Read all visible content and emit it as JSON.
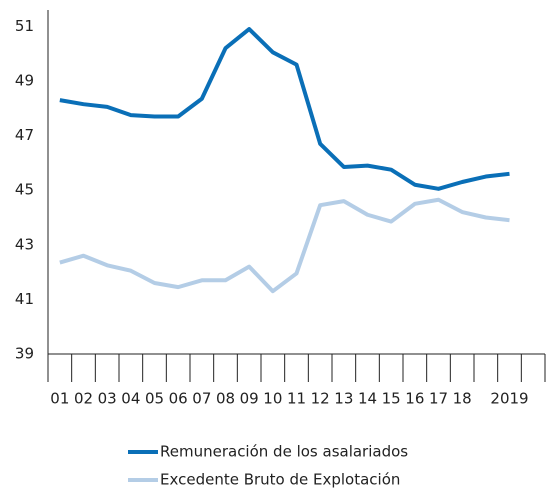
{
  "chart_data": {
    "type": "line",
    "categories": [
      "01",
      "02",
      "03",
      "04",
      "05",
      "06",
      "07",
      "08",
      "09",
      "10",
      "11",
      "12",
      "13",
      "14",
      "15",
      "16",
      "17",
      "18",
      null,
      "2019",
      null
    ],
    "series": [
      {
        "name": "Remuneración de los asalariados",
        "color": "#0a6fb7",
        "values": [
          48.3,
          48.15,
          48.05,
          47.75,
          47.7,
          47.7,
          48.35,
          50.2,
          50.9,
          50.05,
          49.6,
          46.7,
          45.85,
          45.9,
          45.75,
          45.2,
          45.05,
          45.3,
          45.5,
          45.6,
          null
        ]
      },
      {
        "name": "Excedente Bruto de Explotación",
        "color": "#b4cde6",
        "values": [
          42.35,
          42.6,
          42.25,
          42.05,
          41.6,
          41.45,
          41.7,
          41.7,
          42.2,
          41.3,
          41.95,
          44.45,
          44.6,
          44.1,
          43.85,
          44.5,
          44.65,
          44.2,
          44.0,
          43.9,
          null
        ]
      }
    ],
    "ylim": [
      39,
      51.6
    ],
    "yticks": [
      39,
      41,
      43,
      45,
      47,
      49,
      51
    ]
  }
}
